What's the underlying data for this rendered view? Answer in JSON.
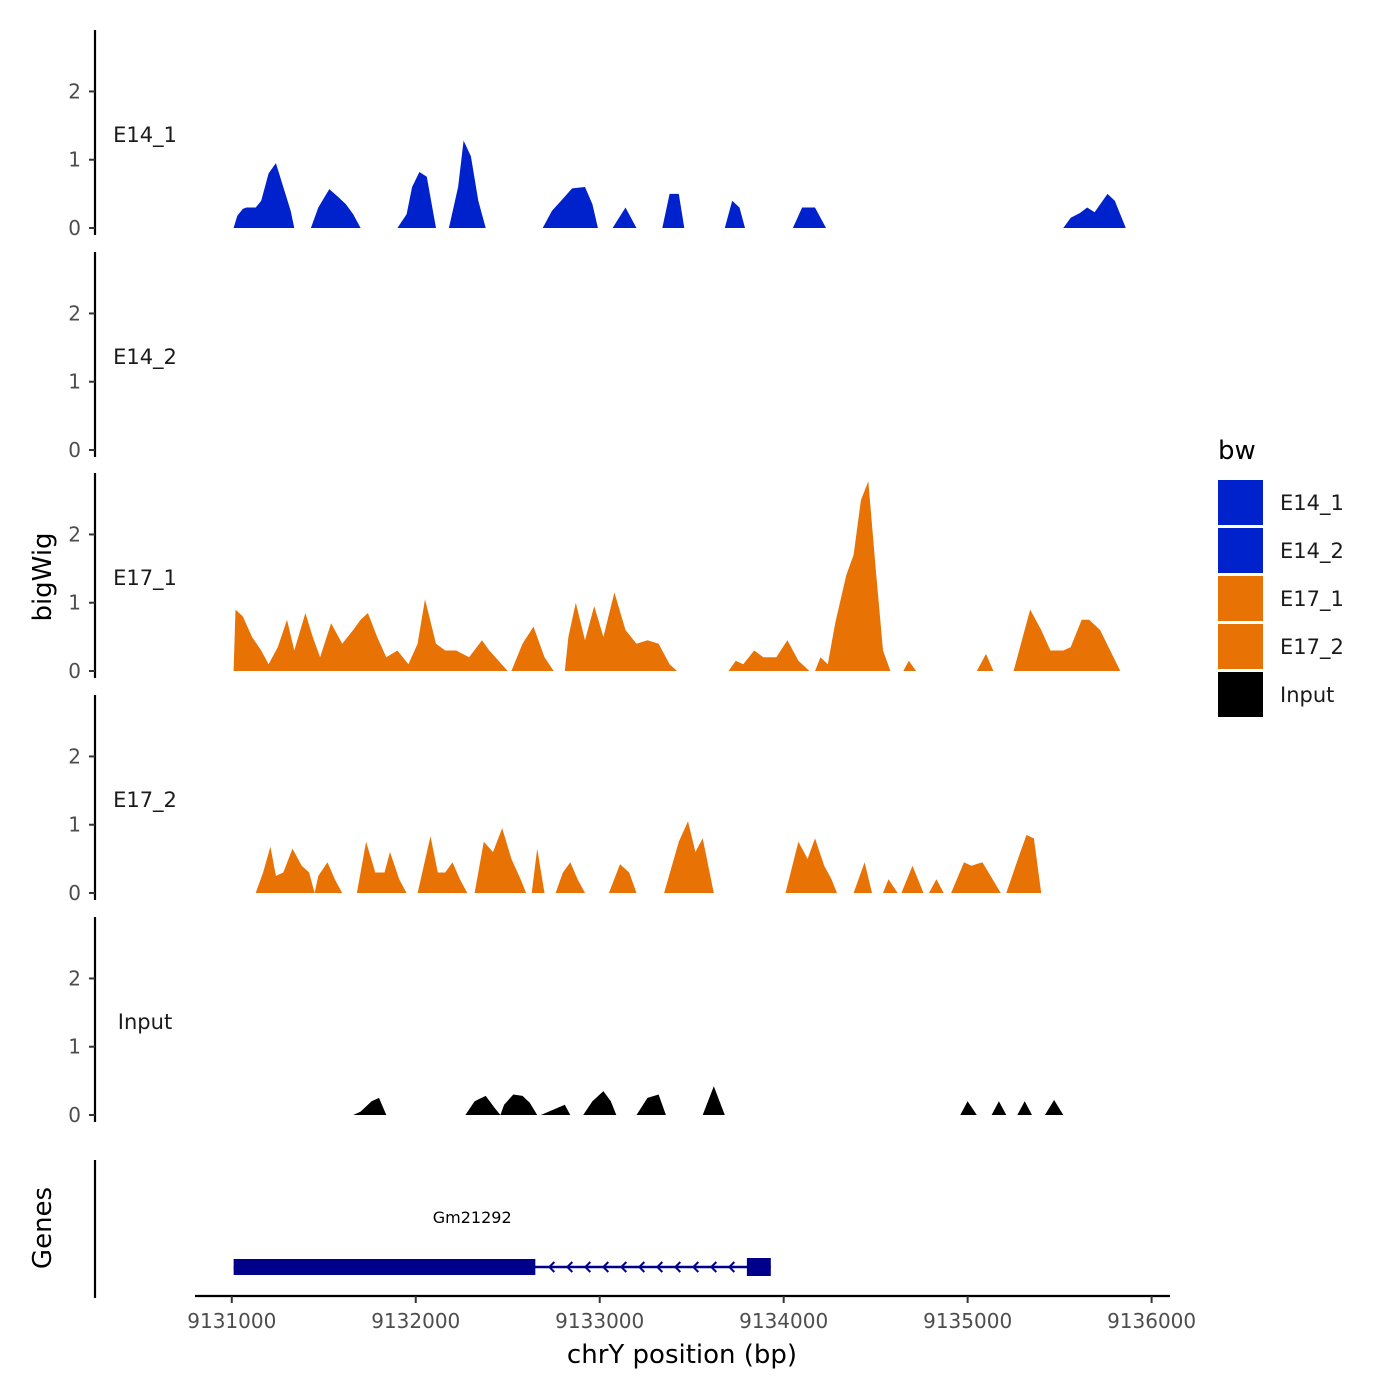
{
  "chart_data": {
    "type": "area",
    "title": "",
    "xlabel": "chrY position (bp)",
    "ylabel": "bigWig",
    "genes_label": "Genes",
    "xlim": [
      9130800,
      9136100
    ],
    "ylim": [
      0,
      2.9
    ],
    "x_ticks": [
      9131000,
      9132000,
      9133000,
      9134000,
      9135000,
      9136000
    ],
    "x_tick_labels": [
      "9131000",
      "9132000",
      "9133000",
      "9134000",
      "9135000",
      "9136000"
    ],
    "y_ticks": [
      0,
      1,
      2
    ],
    "y_tick_labels": [
      "0",
      "1",
      "2"
    ],
    "legend": {
      "title": "bw",
      "position": "right",
      "entries": [
        {
          "label": "E14_1",
          "color": "#0022CC"
        },
        {
          "label": "E14_2",
          "color": "#0022CC"
        },
        {
          "label": "E17_1",
          "color": "#E87204"
        },
        {
          "label": "E17_2",
          "color": "#E87204"
        },
        {
          "label": "Input",
          "color": "#000000"
        }
      ]
    },
    "series": [
      {
        "name": "E14_1",
        "label": "E14_1",
        "color": "#0022CC",
        "points": [
          [
            9131010,
            0
          ],
          [
            9131030,
            0.18
          ],
          [
            9131060,
            0.28
          ],
          [
            9131080,
            0.3
          ],
          [
            9131130,
            0.3
          ],
          [
            9131160,
            0.4
          ],
          [
            9131200,
            0.8
          ],
          [
            9131240,
            0.95
          ],
          [
            9131280,
            0.6
          ],
          [
            9131320,
            0.25
          ],
          [
            9131340,
            0
          ],
          [
            9131430,
            0
          ],
          [
            9131470,
            0.3
          ],
          [
            9131530,
            0.57
          ],
          [
            9131580,
            0.45
          ],
          [
            9131620,
            0.35
          ],
          [
            9131660,
            0.2
          ],
          [
            9131700,
            0
          ],
          [
            9131900,
            0
          ],
          [
            9131950,
            0.2
          ],
          [
            9131980,
            0.6
          ],
          [
            9132020,
            0.82
          ],
          [
            9132060,
            0.75
          ],
          [
            9132090,
            0.3
          ],
          [
            9132110,
            0
          ],
          [
            9132180,
            0
          ],
          [
            9132230,
            0.6
          ],
          [
            9132260,
            1.28
          ],
          [
            9132300,
            1.05
          ],
          [
            9132340,
            0.4
          ],
          [
            9132380,
            0
          ],
          [
            9132690,
            0
          ],
          [
            9132740,
            0.25
          ],
          [
            9132790,
            0.4
          ],
          [
            9132850,
            0.58
          ],
          [
            9132920,
            0.6
          ],
          [
            9132960,
            0.35
          ],
          [
            9132990,
            0
          ],
          [
            9133070,
            0
          ],
          [
            9133140,
            0.3
          ],
          [
            9133200,
            0
          ],
          [
            9133340,
            0
          ],
          [
            9133380,
            0.5
          ],
          [
            9133430,
            0.5
          ],
          [
            9133460,
            0
          ],
          [
            9133680,
            0
          ],
          [
            9133720,
            0.4
          ],
          [
            9133760,
            0.3
          ],
          [
            9133790,
            0
          ],
          [
            9134050,
            0
          ],
          [
            9134100,
            0.3
          ],
          [
            9134170,
            0.3
          ],
          [
            9134230,
            0
          ],
          [
            9135520,
            0
          ],
          [
            9135560,
            0.15
          ],
          [
            9135610,
            0.22
          ],
          [
            9135650,
            0.3
          ],
          [
            9135690,
            0.23
          ],
          [
            9135760,
            0.5
          ],
          [
            9135800,
            0.4
          ],
          [
            9135860,
            0
          ]
        ]
      },
      {
        "name": "E14_2",
        "label": "E14_2",
        "color": "#0022CC",
        "points": []
      },
      {
        "name": "E17_1",
        "label": "E17_1",
        "color": "#E87204",
        "points": [
          [
            9131010,
            0
          ],
          [
            9131020,
            0.9
          ],
          [
            9131060,
            0.8
          ],
          [
            9131110,
            0.5
          ],
          [
            9131160,
            0.3
          ],
          [
            9131200,
            0.1
          ],
          [
            9131250,
            0.35
          ],
          [
            9131300,
            0.75
          ],
          [
            9131340,
            0.3
          ],
          [
            9131400,
            0.85
          ],
          [
            9131440,
            0.5
          ],
          [
            9131480,
            0.2
          ],
          [
            9131540,
            0.7
          ],
          [
            9131600,
            0.4
          ],
          [
            9131660,
            0.6
          ],
          [
            9131700,
            0.75
          ],
          [
            9131740,
            0.85
          ],
          [
            9131790,
            0.5
          ],
          [
            9131840,
            0.2
          ],
          [
            9131900,
            0.3
          ],
          [
            9131960,
            0.1
          ],
          [
            9132010,
            0.4
          ],
          [
            9132050,
            1.05
          ],
          [
            9132110,
            0.4
          ],
          [
            9132160,
            0.3
          ],
          [
            9132220,
            0.3
          ],
          [
            9132290,
            0.2
          ],
          [
            9132360,
            0.45
          ],
          [
            9132400,
            0.3
          ],
          [
            9132500,
            0
          ],
          [
            9132520,
            0
          ],
          [
            9132580,
            0.4
          ],
          [
            9132640,
            0.65
          ],
          [
            9132700,
            0.2
          ],
          [
            9132750,
            0
          ],
          [
            9132810,
            0
          ],
          [
            9132830,
            0.5
          ],
          [
            9132870,
            1.0
          ],
          [
            9132920,
            0.45
          ],
          [
            9132970,
            0.95
          ],
          [
            9133020,
            0.5
          ],
          [
            9133080,
            1.15
          ],
          [
            9133140,
            0.6
          ],
          [
            9133200,
            0.4
          ],
          [
            9133260,
            0.45
          ],
          [
            9133320,
            0.4
          ],
          [
            9133380,
            0.1
          ],
          [
            9133420,
            0
          ],
          [
            9133700,
            0
          ],
          [
            9133740,
            0.15
          ],
          [
            9133780,
            0.1
          ],
          [
            9133840,
            0.3
          ],
          [
            9133890,
            0.2
          ],
          [
            9133960,
            0.2
          ],
          [
            9134020,
            0.45
          ],
          [
            9134080,
            0.15
          ],
          [
            9134140,
            0
          ],
          [
            9134170,
            0
          ],
          [
            9134200,
            0.2
          ],
          [
            9134240,
            0.1
          ],
          [
            9134280,
            0.7
          ],
          [
            9134340,
            1.4
          ],
          [
            9134380,
            1.7
          ],
          [
            9134420,
            2.5
          ],
          [
            9134460,
            2.78
          ],
          [
            9134500,
            1.5
          ],
          [
            9134540,
            0.3
          ],
          [
            9134580,
            0
          ],
          [
            9134650,
            0
          ],
          [
            9134680,
            0.15
          ],
          [
            9134720,
            0
          ],
          [
            9135050,
            0
          ],
          [
            9135100,
            0.25
          ],
          [
            9135140,
            0
          ],
          [
            9135250,
            0
          ],
          [
            9135300,
            0.5
          ],
          [
            9135340,
            0.9
          ],
          [
            9135400,
            0.6
          ],
          [
            9135450,
            0.3
          ],
          [
            9135520,
            0.3
          ],
          [
            9135560,
            0.35
          ],
          [
            9135620,
            0.75
          ],
          [
            9135660,
            0.75
          ],
          [
            9135720,
            0.6
          ],
          [
            9135830,
            0
          ]
        ]
      },
      {
        "name": "E17_2",
        "label": "E17_2",
        "color": "#E87204",
        "points": [
          [
            9131130,
            0
          ],
          [
            9131170,
            0.3
          ],
          [
            9131210,
            0.68
          ],
          [
            9131240,
            0.25
          ],
          [
            9131280,
            0.3
          ],
          [
            9131330,
            0.65
          ],
          [
            9131380,
            0.4
          ],
          [
            9131420,
            0.3
          ],
          [
            9131450,
            0
          ],
          [
            9131470,
            0.25
          ],
          [
            9131520,
            0.45
          ],
          [
            9131560,
            0.2
          ],
          [
            9131600,
            0
          ],
          [
            9131680,
            0
          ],
          [
            9131730,
            0.75
          ],
          [
            9131780,
            0.3
          ],
          [
            9131830,
            0.3
          ],
          [
            9131860,
            0.6
          ],
          [
            9131910,
            0.2
          ],
          [
            9131950,
            0
          ],
          [
            9132010,
            0
          ],
          [
            9132080,
            0.83
          ],
          [
            9132120,
            0.3
          ],
          [
            9132160,
            0.3
          ],
          [
            9132200,
            0.45
          ],
          [
            9132240,
            0.2
          ],
          [
            9132280,
            0
          ],
          [
            9132320,
            0
          ],
          [
            9132370,
            0.75
          ],
          [
            9132420,
            0.6
          ],
          [
            9132470,
            0.95
          ],
          [
            9132520,
            0.5
          ],
          [
            9132570,
            0.2
          ],
          [
            9132600,
            0
          ],
          [
            9132630,
            0
          ],
          [
            9132660,
            0.65
          ],
          [
            9132700,
            0
          ],
          [
            9132760,
            0
          ],
          [
            9132800,
            0.3
          ],
          [
            9132840,
            0.45
          ],
          [
            9132880,
            0.2
          ],
          [
            9132920,
            0
          ],
          [
            9133050,
            0
          ],
          [
            9133110,
            0.42
          ],
          [
            9133160,
            0.3
          ],
          [
            9133200,
            0
          ],
          [
            9133350,
            0
          ],
          [
            9133430,
            0.75
          ],
          [
            9133480,
            1.05
          ],
          [
            9133520,
            0.6
          ],
          [
            9133560,
            0.8
          ],
          [
            9133620,
            0
          ],
          [
            9134010,
            0
          ],
          [
            9134080,
            0.75
          ],
          [
            9134130,
            0.5
          ],
          [
            9134170,
            0.8
          ],
          [
            9134220,
            0.4
          ],
          [
            9134260,
            0.2
          ],
          [
            9134290,
            0
          ],
          [
            9134380,
            0
          ],
          [
            9134440,
            0.45
          ],
          [
            9134480,
            0
          ],
          [
            9134540,
            0
          ],
          [
            9134570,
            0.2
          ],
          [
            9134620,
            0
          ],
          [
            9134640,
            0
          ],
          [
            9134700,
            0.4
          ],
          [
            9134760,
            0
          ],
          [
            9134790,
            0
          ],
          [
            9134830,
            0.2
          ],
          [
            9134870,
            0
          ],
          [
            9134910,
            0
          ],
          [
            9134980,
            0.45
          ],
          [
            9135020,
            0.4
          ],
          [
            9135080,
            0.45
          ],
          [
            9135180,
            0
          ],
          [
            9135210,
            0
          ],
          [
            9135280,
            0.55
          ],
          [
            9135320,
            0.85
          ],
          [
            9135360,
            0.8
          ],
          [
            9135400,
            0
          ]
        ]
      },
      {
        "name": "Input",
        "label": "Input",
        "color": "#000000",
        "points": [
          [
            9131660,
            0
          ],
          [
            9131700,
            0.05
          ],
          [
            9131760,
            0.2
          ],
          [
            9131800,
            0.25
          ],
          [
            9131840,
            0
          ],
          [
            9132270,
            0
          ],
          [
            9132320,
            0.2
          ],
          [
            9132380,
            0.28
          ],
          [
            9132430,
            0.1
          ],
          [
            9132460,
            0
          ],
          [
            9132480,
            0.15
          ],
          [
            9132530,
            0.3
          ],
          [
            9132580,
            0.28
          ],
          [
            9132620,
            0.18
          ],
          [
            9132660,
            0
          ],
          [
            9132680,
            0
          ],
          [
            9132750,
            0.08
          ],
          [
            9132810,
            0.15
          ],
          [
            9132840,
            0
          ],
          [
            9132910,
            0
          ],
          [
            9132960,
            0.2
          ],
          [
            9133020,
            0.35
          ],
          [
            9133060,
            0.2
          ],
          [
            9133090,
            0
          ],
          [
            9133200,
            0
          ],
          [
            9133260,
            0.25
          ],
          [
            9133320,
            0.3
          ],
          [
            9133360,
            0
          ],
          [
            9133560,
            0
          ],
          [
            9133620,
            0.42
          ],
          [
            9133680,
            0
          ],
          [
            9134960,
            0
          ],
          [
            9135000,
            0.2
          ],
          [
            9135050,
            0
          ],
          [
            9135130,
            0
          ],
          [
            9135170,
            0.2
          ],
          [
            9135210,
            0
          ],
          [
            9135270,
            0
          ],
          [
            9135310,
            0.2
          ],
          [
            9135350,
            0
          ],
          [
            9135420,
            0
          ],
          [
            9135470,
            0.22
          ],
          [
            9135520,
            0
          ]
        ]
      }
    ],
    "genes": [
      {
        "name": "Gm21292",
        "strand": "-",
        "start": 9131010,
        "end": 9133930,
        "thick_start": 9131010,
        "thick_end": 9132650,
        "utr_blocks": [
          [
            9133800,
            9133930
          ]
        ]
      }
    ]
  }
}
